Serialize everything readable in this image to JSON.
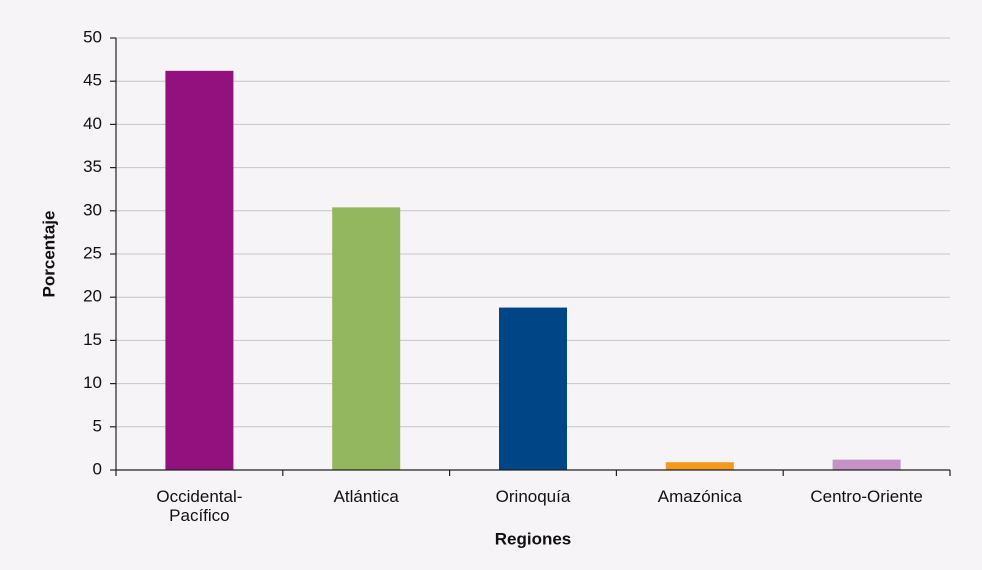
{
  "chart_data": {
    "type": "bar",
    "x_label": "Regiones",
    "y_label": "Porcentaje",
    "categories": [
      "Occidental-\nPacífico",
      "Atlántica",
      "Orinoquía",
      "Amazónica",
      "Centro-Oriente"
    ],
    "values": [
      46.2,
      30.4,
      18.8,
      0.9,
      1.2
    ],
    "colors": [
      "#93117e",
      "#93b75f",
      "#004586",
      "#f39a1e",
      "#c492c4"
    ],
    "ylim": [
      0,
      50
    ],
    "yticks": [
      0,
      5,
      10,
      15,
      20,
      25,
      30,
      35,
      40,
      45,
      50
    ],
    "grid": true
  }
}
